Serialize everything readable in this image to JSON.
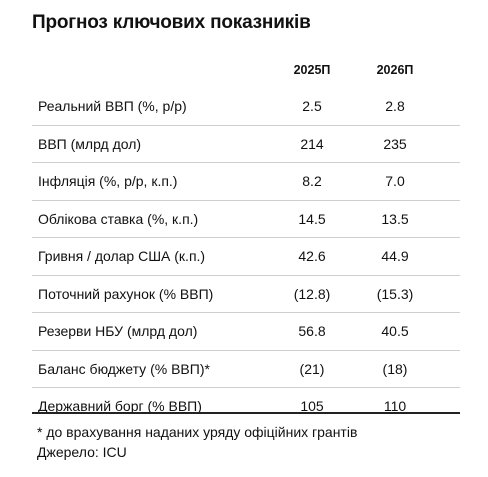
{
  "title": "Прогноз ключових показників",
  "columns": [
    "2025П",
    "2026П"
  ],
  "rows": [
    {
      "label": "Реальний ВВП (%, р/р)",
      "v2025": "2.5",
      "v2026": "2.8"
    },
    {
      "label": "ВВП (млрд дол)",
      "v2025": "214",
      "v2026": "235"
    },
    {
      "label": "Інфляція (%, р/р, к.п.)",
      "v2025": "8.2",
      "v2026": "7.0"
    },
    {
      "label": "Облікова ставка (%, к.п.)",
      "v2025": "14.5",
      "v2026": "13.5"
    },
    {
      "label": "Гривня / долар США (к.п.)",
      "v2025": "42.6",
      "v2026": "44.9"
    },
    {
      "label": "Поточний рахунок (% ВВП)",
      "v2025": "(12.8)",
      "v2026": "(15.3)"
    },
    {
      "label": "Резерви НБУ (млрд дол)",
      "v2025": "56.8",
      "v2026": "40.5"
    },
    {
      "label": "Баланс бюджету (% ВВП)*",
      "v2025": "(21)",
      "v2026": "(18)"
    },
    {
      "label": "Державний борг (% ВВП)",
      "v2025": "105",
      "v2026": "110"
    }
  ],
  "footnote": "* до врахування наданих уряду офіційних грантів",
  "source": "Джерело: ICU"
}
